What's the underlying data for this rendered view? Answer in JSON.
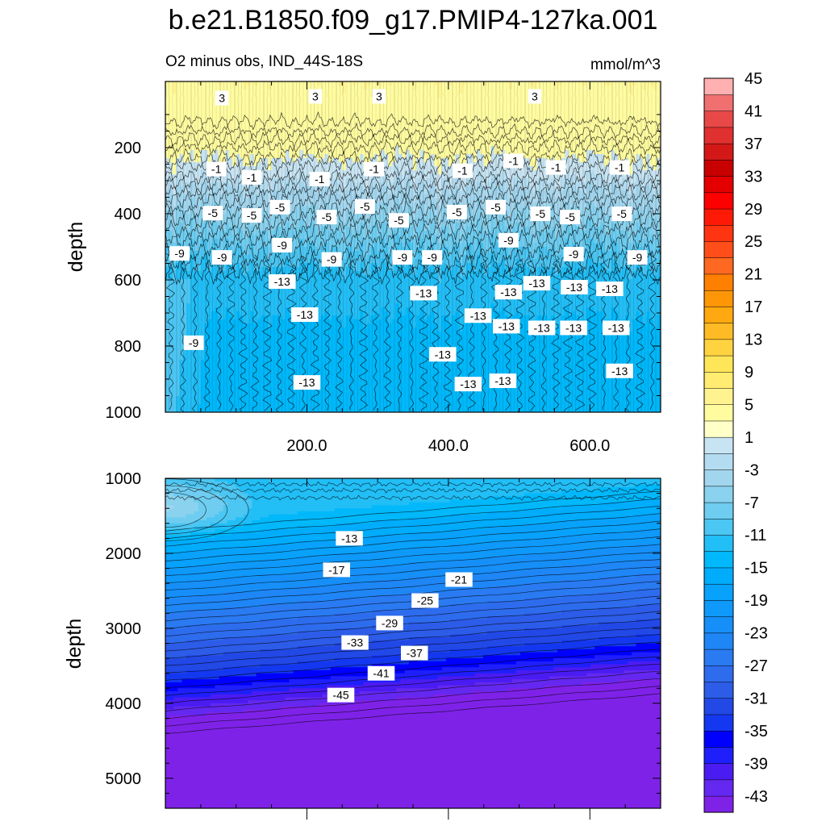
{
  "chart_data": {
    "type": "heatmap",
    "title": "b.e21.B1850.f09_g17.PMIP4-127ka.001",
    "subtitle_left": "O2 minus obs, IND_44S-18S",
    "subtitle_right": "mmol/m^3",
    "panels": [
      {
        "name": "upper",
        "ylabel": "depth",
        "ylim": [
          0,
          1000
        ],
        "xlim": [
          0,
          700
        ],
        "yticks": [
          200,
          400,
          600,
          800,
          1000
        ],
        "ytick_labels": [
          "200",
          "400",
          "600",
          "800",
          "1000"
        ],
        "xticks": [
          200,
          400,
          600
        ],
        "xtick_labels": [
          "200.0",
          "400.0",
          "600.0"
        ],
        "contour_labels": [
          {
            "text": "3",
            "x": 80,
            "y": 50
          },
          {
            "text": "3",
            "x": 212,
            "y": 45
          },
          {
            "text": "3",
            "x": 302,
            "y": 45
          },
          {
            "text": "3",
            "x": 522,
            "y": 45
          },
          {
            "text": "-1",
            "x": 72,
            "y": 265
          },
          {
            "text": "-1",
            "x": 122,
            "y": 290
          },
          {
            "text": "-1",
            "x": 218,
            "y": 295
          },
          {
            "text": "-1",
            "x": 295,
            "y": 265
          },
          {
            "text": "-1",
            "x": 420,
            "y": 270
          },
          {
            "text": "-1",
            "x": 492,
            "y": 240
          },
          {
            "text": "-1",
            "x": 552,
            "y": 260
          },
          {
            "text": "-1",
            "x": 642,
            "y": 260
          },
          {
            "text": "-5",
            "x": 67,
            "y": 398
          },
          {
            "text": "-5",
            "x": 122,
            "y": 405
          },
          {
            "text": "-5",
            "x": 162,
            "y": 380
          },
          {
            "text": "-5",
            "x": 228,
            "y": 410
          },
          {
            "text": "-5",
            "x": 282,
            "y": 378
          },
          {
            "text": "-5",
            "x": 330,
            "y": 420
          },
          {
            "text": "-5",
            "x": 412,
            "y": 395
          },
          {
            "text": "-5",
            "x": 467,
            "y": 380
          },
          {
            "text": "-5",
            "x": 530,
            "y": 400
          },
          {
            "text": "-5",
            "x": 572,
            "y": 410
          },
          {
            "text": "-5",
            "x": 645,
            "y": 400
          },
          {
            "text": "-9",
            "x": 20,
            "y": 520
          },
          {
            "text": "-9",
            "x": 80,
            "y": 532
          },
          {
            "text": "-9",
            "x": 165,
            "y": 495
          },
          {
            "text": "-9",
            "x": 235,
            "y": 538
          },
          {
            "text": "-9",
            "x": 335,
            "y": 532
          },
          {
            "text": "-9",
            "x": 377,
            "y": 532
          },
          {
            "text": "-9",
            "x": 485,
            "y": 480
          },
          {
            "text": "-9",
            "x": 577,
            "y": 522
          },
          {
            "text": "-9",
            "x": 667,
            "y": 532
          },
          {
            "text": "-9",
            "x": 40,
            "y": 790
          },
          {
            "text": "-13",
            "x": 165,
            "y": 605
          },
          {
            "text": "-13",
            "x": 365,
            "y": 640
          },
          {
            "text": "-13",
            "x": 485,
            "y": 637
          },
          {
            "text": "-13",
            "x": 525,
            "y": 610
          },
          {
            "text": "-13",
            "x": 578,
            "y": 622
          },
          {
            "text": "-13",
            "x": 628,
            "y": 627
          },
          {
            "text": "-13",
            "x": 197,
            "y": 705
          },
          {
            "text": "-13",
            "x": 442,
            "y": 708
          },
          {
            "text": "-13",
            "x": 482,
            "y": 740
          },
          {
            "text": "-13",
            "x": 532,
            "y": 745
          },
          {
            "text": "-13",
            "x": 577,
            "y": 745
          },
          {
            "text": "-13",
            "x": 637,
            "y": 745
          },
          {
            "text": "-13",
            "x": 392,
            "y": 825
          },
          {
            "text": "-13",
            "x": 200,
            "y": 910
          },
          {
            "text": "-13",
            "x": 428,
            "y": 915
          },
          {
            "text": "-13",
            "x": 477,
            "y": 905
          },
          {
            "text": "-13",
            "x": 642,
            "y": 875
          }
        ]
      },
      {
        "name": "lower",
        "ylabel": "depth",
        "ylim": [
          1000,
          5400
        ],
        "xlim": [
          0,
          700
        ],
        "yticks": [
          1000,
          2000,
          3000,
          4000,
          5000
        ],
        "ytick_labels": [
          "1000",
          "2000",
          "3000",
          "4000",
          "5000"
        ],
        "contour_labels": [
          {
            "text": "-13",
            "x": 260,
            "y": 1800
          },
          {
            "text": "-17",
            "x": 242,
            "y": 2220
          },
          {
            "text": "-21",
            "x": 415,
            "y": 2350
          },
          {
            "text": "-25",
            "x": 367,
            "y": 2630
          },
          {
            "text": "-29",
            "x": 317,
            "y": 2930
          },
          {
            "text": "-33",
            "x": 268,
            "y": 3190
          },
          {
            "text": "-37",
            "x": 352,
            "y": 3330
          },
          {
            "text": "-41",
            "x": 305,
            "y": 3600
          },
          {
            "text": "-45",
            "x": 248,
            "y": 3890
          }
        ]
      }
    ],
    "colorbar": {
      "levels": [
        -45,
        -43,
        -41,
        -39,
        -37,
        -35,
        -33,
        -31,
        -29,
        -27,
        -25,
        -23,
        -21,
        -19,
        -17,
        -15,
        -13,
        -11,
        -9,
        -7,
        -5,
        -3,
        -1,
        1,
        3,
        5,
        7,
        9,
        11,
        13,
        15,
        17,
        19,
        21,
        23,
        25,
        27,
        29,
        31,
        33,
        35,
        37,
        39,
        41,
        43,
        45
      ],
      "labels": [
        "-43",
        "-39",
        "-35",
        "-31",
        "-27",
        "-23",
        "-19",
        "-15",
        "-11",
        "-7",
        "-3",
        "1",
        "5",
        "9",
        "13",
        "17",
        "21",
        "25",
        "29",
        "33",
        "37",
        "41",
        "45"
      ],
      "colors": [
        "#7f22e8",
        "#6428f0",
        "#4a1cf2",
        "#1f1ffc",
        "#0000ff",
        "#1438f0",
        "#2248e6",
        "#2c5ce8",
        "#2e6cee",
        "#2a7af2",
        "#1f86f6",
        "#168ff8",
        "#0f99fa",
        "#08a2fc",
        "#00acfc",
        "#00b8fa",
        "#22bef6",
        "#4cc6f2",
        "#6ecdf0",
        "#8ad2ee",
        "#a2d6ee",
        "#b4dcf0",
        "#c8e4f2",
        "#ffffc8",
        "#fffca0",
        "#fff390",
        "#ffec70",
        "#ffe558",
        "#ffd240",
        "#ffbb26",
        "#ffa810",
        "#ff9606",
        "#ff8000",
        "#ff6820",
        "#ff4e1a",
        "#ff3410",
        "#ff1a08",
        "#ff0000",
        "#e40000",
        "#c80000",
        "#d41818",
        "#e03030",
        "#e84848",
        "#f07070",
        "#ffb0b0"
      ]
    }
  }
}
